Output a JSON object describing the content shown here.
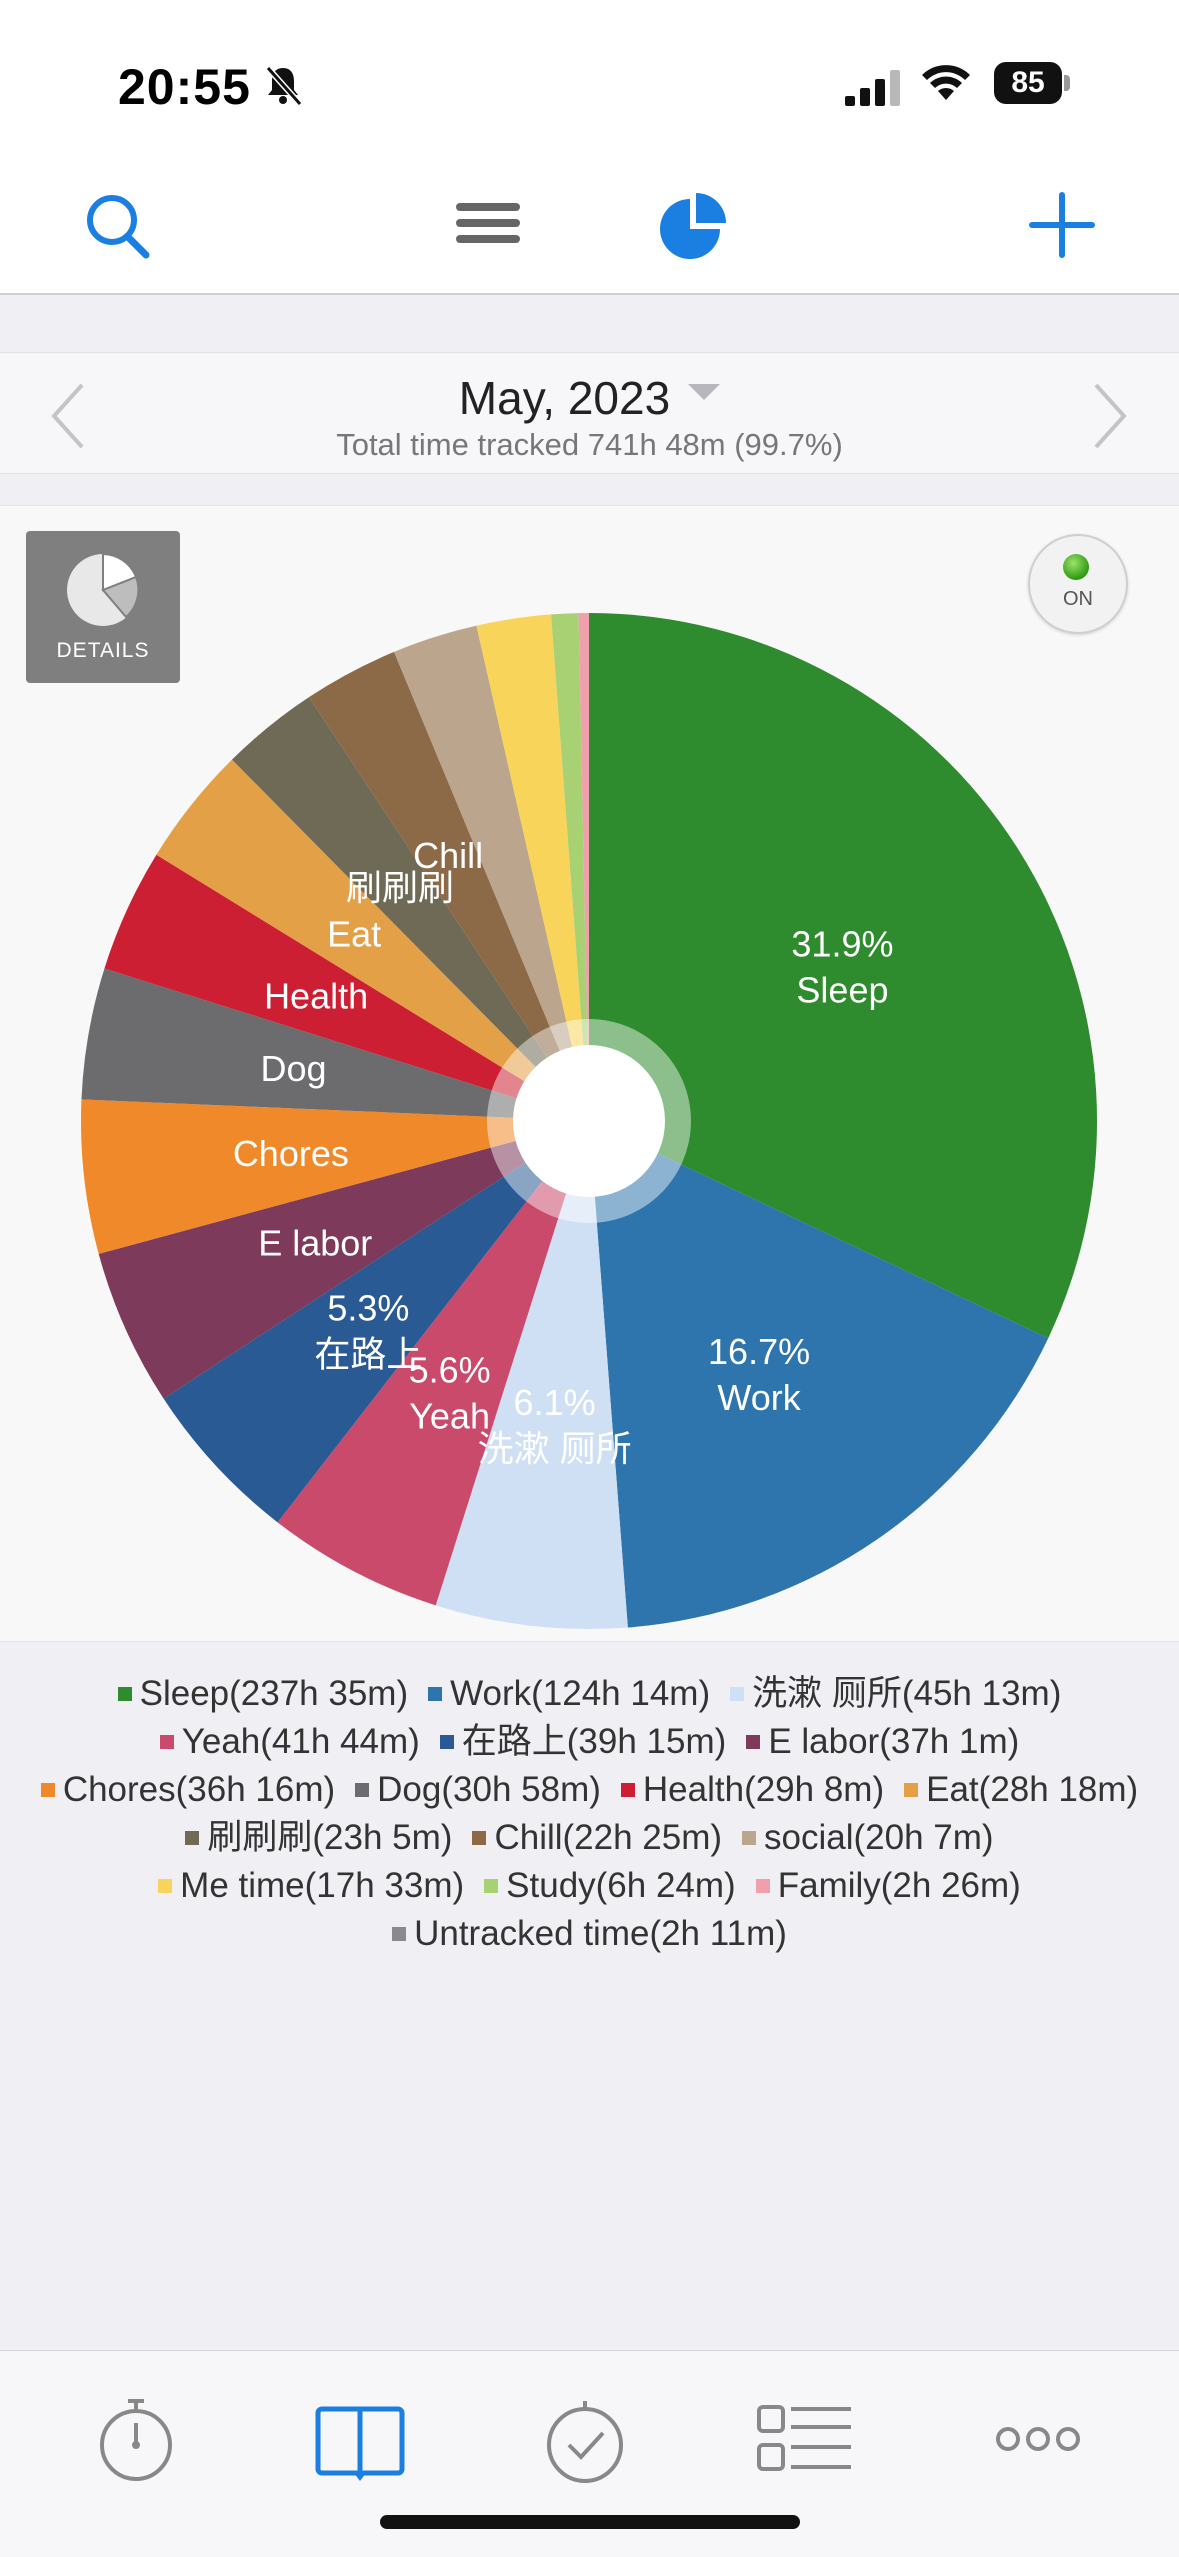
{
  "status_bar": {
    "time": "20:55",
    "battery": "85"
  },
  "toolbar": {
    "search_icon": "search-icon",
    "menu_icon": "hamburger-menu-icon",
    "pie_icon": "pie-chart-icon",
    "add_icon": "add-icon",
    "accent": "#1a7fe0"
  },
  "header": {
    "month": "May, 2023",
    "total": "Total time tracked 741h 48m (99.7%)"
  },
  "controls": {
    "details_label": "DETAILS",
    "on_label": "ON"
  },
  "chart_data": {
    "type": "pie",
    "title": "May, 2023",
    "series": [
      {
        "name": "Sleep",
        "duration": "237h 35m",
        "value": 237.58,
        "color": "#2e8b2e",
        "label": "Sleep",
        "percent_label": "31.9%"
      },
      {
        "name": "Work",
        "duration": "124h 14m",
        "value": 124.23,
        "color": "#2e75ad",
        "label": "Work",
        "percent_label": "16.7%"
      },
      {
        "name": "洗漱 厕所",
        "duration": "45h 13m",
        "value": 45.22,
        "color": "#cfe0f4",
        "label": "洗漱 厕所",
        "percent_label": "6.1%"
      },
      {
        "name": "Yeah",
        "duration": "41h 44m",
        "value": 41.73,
        "color": "#c94a6b",
        "label": "Yeah",
        "percent_label": "5.6%"
      },
      {
        "name": "在路上",
        "duration": "39h 15m",
        "value": 39.25,
        "color": "#2a5a94",
        "label": "在路上",
        "percent_label": "5.3%"
      },
      {
        "name": "E labor",
        "duration": "37h 1m",
        "value": 37.02,
        "color": "#7e3a5a",
        "label": "E labor",
        "percent_label": ""
      },
      {
        "name": "Chores",
        "duration": "36h 16m",
        "value": 36.27,
        "color": "#f0892a",
        "label": "Chores",
        "percent_label": ""
      },
      {
        "name": "Dog",
        "duration": "30h 58m",
        "value": 30.97,
        "color": "#6c6c6e",
        "label": "Dog",
        "percent_label": ""
      },
      {
        "name": "Health",
        "duration": "29h 8m",
        "value": 29.13,
        "color": "#cc1f33",
        "label": "Health",
        "percent_label": ""
      },
      {
        "name": "Eat",
        "duration": "28h 18m",
        "value": 28.3,
        "color": "#e4a046",
        "label": "Eat",
        "percent_label": ""
      },
      {
        "name": "刷刷刷",
        "duration": "23h 5m",
        "value": 23.08,
        "color": "#6e6a55",
        "label": "刷刷刷",
        "percent_label": ""
      },
      {
        "name": "Chill",
        "duration": "22h 25m",
        "value": 22.42,
        "color": "#8c6a48",
        "label": "Chill",
        "percent_label": ""
      },
      {
        "name": "social",
        "duration": "20h 7m",
        "value": 20.12,
        "color": "#bba58c",
        "label": "",
        "percent_label": ""
      },
      {
        "name": "Me time",
        "duration": "17h 33m",
        "value": 17.55,
        "color": "#f8d55a",
        "label": "",
        "percent_label": ""
      },
      {
        "name": "Study",
        "duration": "6h 24m",
        "value": 6.4,
        "color": "#a8d174",
        "label": "",
        "percent_label": ""
      },
      {
        "name": "Family",
        "duration": "2h 26m",
        "value": 2.43,
        "color": "#f0a0ac",
        "label": "",
        "percent_label": ""
      },
      {
        "name": "Untracked time",
        "duration": "2h 11m",
        "value": 2.18,
        "color": "#8a8a8a",
        "label": "",
        "percent_label": "",
        "legend_only": true
      }
    ]
  },
  "tabs": [
    {
      "name": "timer",
      "icon": "stopwatch-icon"
    },
    {
      "name": "log",
      "icon": "book-icon",
      "active": true
    },
    {
      "name": "goals",
      "icon": "check-clock-icon"
    },
    {
      "name": "categories",
      "icon": "list-icon"
    },
    {
      "name": "more",
      "icon": "more-icon"
    }
  ]
}
